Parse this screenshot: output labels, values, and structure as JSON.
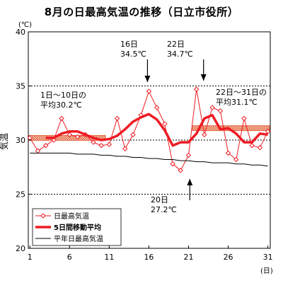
{
  "title": "8月の日最高気温の推移（日立市役所）",
  "chart_data": {
    "type": "line",
    "title": "8月の日最高気温の推移（日立市役所）",
    "y_unit": "(℃)",
    "x_unit": "(日)",
    "ylabel": "気温",
    "xlim": [
      1,
      31
    ],
    "ylim": [
      20,
      40
    ],
    "x_ticks": [
      1,
      6,
      11,
      16,
      21,
      26,
      31
    ],
    "y_ticks": [
      20,
      25,
      30,
      35,
      40
    ],
    "dashed_gridlines": [
      25,
      30,
      35
    ],
    "x": [
      1,
      2,
      3,
      4,
      5,
      6,
      7,
      8,
      9,
      10,
      11,
      12,
      13,
      14,
      15,
      16,
      17,
      18,
      19,
      20,
      21,
      22,
      23,
      24,
      25,
      26,
      27,
      28,
      29,
      30,
      31
    ],
    "series": [
      {
        "name": "日最高気温",
        "style": "thin line with diamond markers",
        "color": "#ee1c24",
        "values": [
          30.2,
          29.0,
          29.5,
          30.0,
          32.0,
          30.5,
          30.3,
          30.5,
          29.8,
          29.5,
          29.6,
          32.0,
          29.2,
          30.5,
          32.3,
          34.5,
          33.0,
          31.5,
          27.8,
          27.2,
          28.6,
          34.7,
          30.5,
          33.0,
          32.7,
          28.8,
          28.2,
          32.0,
          29.5,
          29.3,
          30.8
        ]
      },
      {
        "name": "5日間移動平均",
        "style": "thick line",
        "color": "#ee1c24",
        "values": [
          null,
          null,
          30.2,
          30.2,
          30.6,
          30.8,
          30.8,
          30.5,
          30.2,
          30.0,
          30.1,
          30.4,
          31.0,
          31.7,
          32.1,
          32.4,
          31.9,
          30.9,
          29.5,
          29.8,
          29.8,
          30.6,
          32.0,
          32.3,
          31.0,
          31.1,
          30.6,
          29.8,
          29.8,
          30.6,
          30.5
        ]
      },
      {
        "name": "平年日最高気温",
        "style": "thin line",
        "color": "#000000",
        "values": [
          28.8,
          28.8,
          28.8,
          28.8,
          28.8,
          28.8,
          28.7,
          28.7,
          28.7,
          28.6,
          28.6,
          28.5,
          28.5,
          28.4,
          28.4,
          28.3,
          28.3,
          28.2,
          28.2,
          28.1,
          28.1,
          28.0,
          28.0,
          27.9,
          27.9,
          27.9,
          27.8,
          27.8,
          27.7,
          27.7,
          27.6
        ]
      }
    ],
    "period_averages": [
      {
        "from": 1,
        "to": 10,
        "value": 30.2,
        "label_line1": "1日～10日の",
        "label_line2": "平均30.2℃",
        "color": "#ee1c24"
      },
      {
        "from": 22,
        "to": 31,
        "value": 31.1,
        "label_line1": "22日～31日の",
        "label_line2": "平均31.1℃",
        "color": "#ee1c24"
      }
    ],
    "annotations": [
      {
        "day_label": "16日",
        "value_label": "34.5℃",
        "x": 16,
        "y": 34.5,
        "arrow": "down"
      },
      {
        "day_label": "22日",
        "value_label": "34.7℃",
        "x": 22,
        "y": 34.7,
        "arrow": "down"
      },
      {
        "day_label": "20日",
        "value_label": "27.2℃",
        "x": 20,
        "y": 27.2,
        "arrow": "up"
      }
    ],
    "legend": {
      "placement": "bottom-left",
      "items": [
        {
          "label": "日最高気温",
          "style": "marker-line",
          "color": "#ee1c24"
        },
        {
          "label": "5日間移動平均",
          "style": "thick",
          "color": "#ee1c24"
        },
        {
          "label": "平年日最高気温",
          "style": "thin",
          "color": "#000000"
        }
      ]
    }
  }
}
